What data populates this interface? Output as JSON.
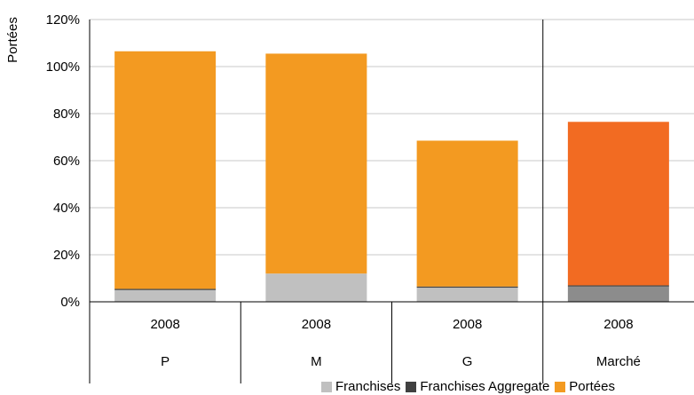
{
  "chart_data": {
    "type": "bar",
    "stacked": true,
    "ylabel": "Portées",
    "ylim": [
      0,
      120
    ],
    "yticks": [
      "0%",
      "20%",
      "40%",
      "60%",
      "80%",
      "100%",
      "120%"
    ],
    "grid": true,
    "legend_position": "bottom-right",
    "groups": [
      {
        "year": "2008",
        "label": "P"
      },
      {
        "year": "2008",
        "label": "M"
      },
      {
        "year": "2008",
        "label": "G"
      },
      {
        "year": "2008",
        "label": "Marché"
      }
    ],
    "series": [
      {
        "name": "Franchises",
        "color": "#c0c0c0",
        "values": [
          5,
          12,
          6,
          0
        ]
      },
      {
        "name": "Franchises Aggregate",
        "color": "#404040",
        "values": [
          0.5,
          0,
          0.5,
          0
        ]
      },
      {
        "name": "Portées",
        "color": "#f39a21",
        "values": [
          101,
          93.5,
          62,
          0
        ]
      }
    ],
    "market_bar": {
      "label": "Marché",
      "segments": [
        {
          "value": 6.5,
          "color": "#8c8c8c"
        },
        {
          "value": 0.5,
          "color": "#404040"
        },
        {
          "value": 69.5,
          "color": "#f26b22"
        }
      ]
    }
  }
}
